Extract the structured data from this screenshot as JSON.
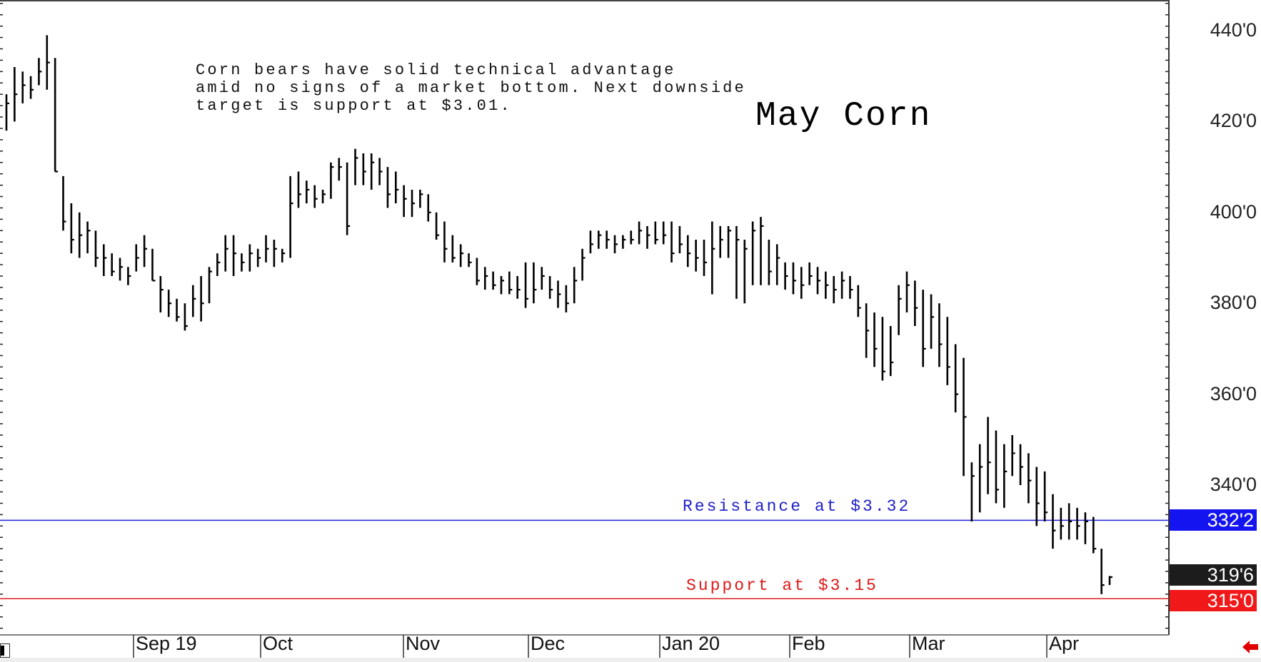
{
  "chart_data": {
    "type": "ohlc-bar",
    "title": "May Corn",
    "annotation": "Corn bears have solid technical advantage\namid no signs of a market bottom. Next downside\ntarget is support at $3.01.",
    "xlabel": "",
    "ylabel": "",
    "ylim": [
      300,
      446
    ],
    "y_ticks": [
      "440'0",
      "420'0",
      "400'0",
      "380'0",
      "360'0",
      "340'0"
    ],
    "y_tick_values": [
      440,
      420,
      400,
      380,
      360,
      340
    ],
    "x_ticks": [
      "Sep 19",
      "Oct",
      "Nov",
      "Dec",
      "Jan 20",
      "Feb",
      "Mar",
      "Apr"
    ],
    "grid": false,
    "lines": [
      {
        "name": "Resistance at $3.32",
        "value": 332.25,
        "color": "#2020e0"
      },
      {
        "name": "Support at $3.15",
        "value": 315.0,
        "color": "#e02020"
      }
    ],
    "price_markers": [
      {
        "label": "332'2",
        "value": 332.25,
        "bg": "#1414f0"
      },
      {
        "label": "319'6",
        "value": 319.75,
        "bg": "#1c1c1c"
      },
      {
        "label": "315'0",
        "value": 315.0,
        "bg": "#f01818"
      }
    ],
    "bars_hlc": [
      [
        426,
        418,
        424
      ],
      [
        432,
        420,
        426
      ],
      [
        431,
        424,
        428
      ],
      [
        430,
        425,
        427
      ],
      [
        434,
        428,
        431
      ],
      [
        439,
        427,
        433
      ],
      [
        434,
        409,
        409
      ],
      [
        408,
        396,
        398
      ],
      [
        402,
        391,
        394
      ],
      [
        400,
        390,
        395
      ],
      [
        398,
        391,
        396
      ],
      [
        396,
        388,
        390
      ],
      [
        393,
        386,
        390
      ],
      [
        391,
        386,
        387
      ],
      [
        390,
        385,
        388
      ],
      [
        388,
        384,
        386
      ],
      [
        393,
        387,
        390
      ],
      [
        395,
        388,
        392
      ],
      [
        392,
        385,
        385
      ],
      [
        386,
        378,
        383
      ],
      [
        383,
        377,
        380
      ],
      [
        381,
        376,
        377
      ],
      [
        380,
        374,
        375
      ],
      [
        384,
        377,
        381
      ],
      [
        386,
        376,
        380
      ],
      [
        388,
        380,
        387
      ],
      [
        391,
        386,
        389
      ],
      [
        395,
        387,
        392
      ],
      [
        395,
        386,
        391
      ],
      [
        391,
        387,
        389
      ],
      [
        393,
        387,
        391
      ],
      [
        392,
        388,
        390
      ],
      [
        395,
        389,
        392
      ],
      [
        394,
        388,
        392
      ],
      [
        392,
        389,
        391
      ],
      [
        408,
        390,
        402
      ],
      [
        409,
        401,
        404
      ],
      [
        407,
        402,
        405
      ],
      [
        406,
        401,
        403
      ],
      [
        405,
        402,
        404
      ],
      [
        411,
        403,
        410
      ],
      [
        412,
        407,
        410
      ],
      [
        411,
        395,
        397
      ],
      [
        414,
        406,
        412
      ],
      [
        413,
        406,
        409
      ],
      [
        413,
        405,
        411
      ],
      [
        412,
        406,
        409
      ],
      [
        410,
        401,
        404
      ],
      [
        409,
        402,
        405
      ],
      [
        406,
        399,
        403
      ],
      [
        405,
        399,
        402
      ],
      [
        405,
        401,
        404
      ],
      [
        404,
        398,
        400
      ],
      [
        400,
        394,
        395
      ],
      [
        398,
        389,
        392
      ],
      [
        395,
        389,
        390
      ],
      [
        393,
        388,
        391
      ],
      [
        391,
        388,
        389
      ],
      [
        390,
        384,
        385
      ],
      [
        388,
        383,
        386
      ],
      [
        387,
        383,
        384
      ],
      [
        386,
        382,
        385
      ],
      [
        387,
        382,
        383
      ],
      [
        386,
        381,
        383
      ],
      [
        389,
        379,
        381
      ],
      [
        389,
        380,
        383
      ],
      [
        388,
        383,
        386
      ],
      [
        386,
        381,
        383
      ],
      [
        385,
        379,
        382
      ],
      [
        384,
        378,
        380
      ],
      [
        388,
        380,
        385
      ],
      [
        392,
        385,
        390
      ],
      [
        396,
        391,
        393
      ],
      [
        396,
        392,
        395
      ],
      [
        396,
        392,
        394
      ],
      [
        395,
        391,
        393
      ],
      [
        395,
        392,
        394
      ],
      [
        396,
        393,
        394
      ],
      [
        398,
        393,
        396
      ],
      [
        397,
        392,
        395
      ],
      [
        398,
        393,
        394
      ],
      [
        398,
        393,
        395
      ],
      [
        398,
        389,
        391
      ],
      [
        397,
        391,
        393
      ],
      [
        395,
        388,
        391
      ],
      [
        394,
        387,
        390
      ],
      [
        394,
        386,
        389
      ],
      [
        398,
        382,
        392
      ],
      [
        397,
        390,
        394
      ],
      [
        397,
        390,
        396
      ],
      [
        397,
        381,
        394
      ],
      [
        394,
        380,
        392
      ],
      [
        398,
        384,
        396
      ],
      [
        399,
        384,
        397
      ],
      [
        394,
        384,
        387
      ],
      [
        393,
        384,
        390
      ],
      [
        389,
        383,
        386
      ],
      [
        389,
        382,
        385
      ],
      [
        388,
        381,
        384
      ],
      [
        389,
        384,
        386
      ],
      [
        388,
        382,
        385
      ],
      [
        387,
        381,
        384
      ],
      [
        386,
        380,
        383
      ],
      [
        387,
        381,
        385
      ],
      [
        386,
        381,
        383
      ],
      [
        384,
        377,
        379
      ],
      [
        380,
        368,
        374
      ],
      [
        378,
        366,
        370
      ],
      [
        377,
        363,
        365
      ],
      [
        375,
        364,
        367
      ],
      [
        384,
        373,
        381
      ],
      [
        387,
        378,
        384
      ],
      [
        385,
        375,
        379
      ],
      [
        383,
        366,
        370
      ],
      [
        382,
        370,
        377
      ],
      [
        380,
        366,
        371
      ],
      [
        377,
        362,
        366
      ],
      [
        371,
        356,
        360
      ],
      [
        368,
        342,
        355
      ],
      [
        345,
        332,
        342
      ],
      [
        349,
        334,
        344
      ],
      [
        355,
        338,
        345
      ],
      [
        352,
        336,
        339
      ],
      [
        349,
        335,
        343
      ],
      [
        351,
        342,
        347
      ],
      [
        349,
        340,
        344
      ],
      [
        347,
        336,
        341
      ],
      [
        344,
        331,
        336
      ],
      [
        343,
        332,
        334
      ],
      [
        338,
        326,
        330
      ],
      [
        335,
        328,
        331
      ],
      [
        336,
        328,
        332
      ],
      [
        335,
        328,
        331
      ],
      [
        334,
        327,
        332
      ],
      [
        333,
        325,
        326
      ],
      [
        326,
        316,
        318
      ],
      [
        320,
        318,
        319.75
      ]
    ]
  },
  "footer": {
    "back_arrow": "left-arrow-icon"
  }
}
